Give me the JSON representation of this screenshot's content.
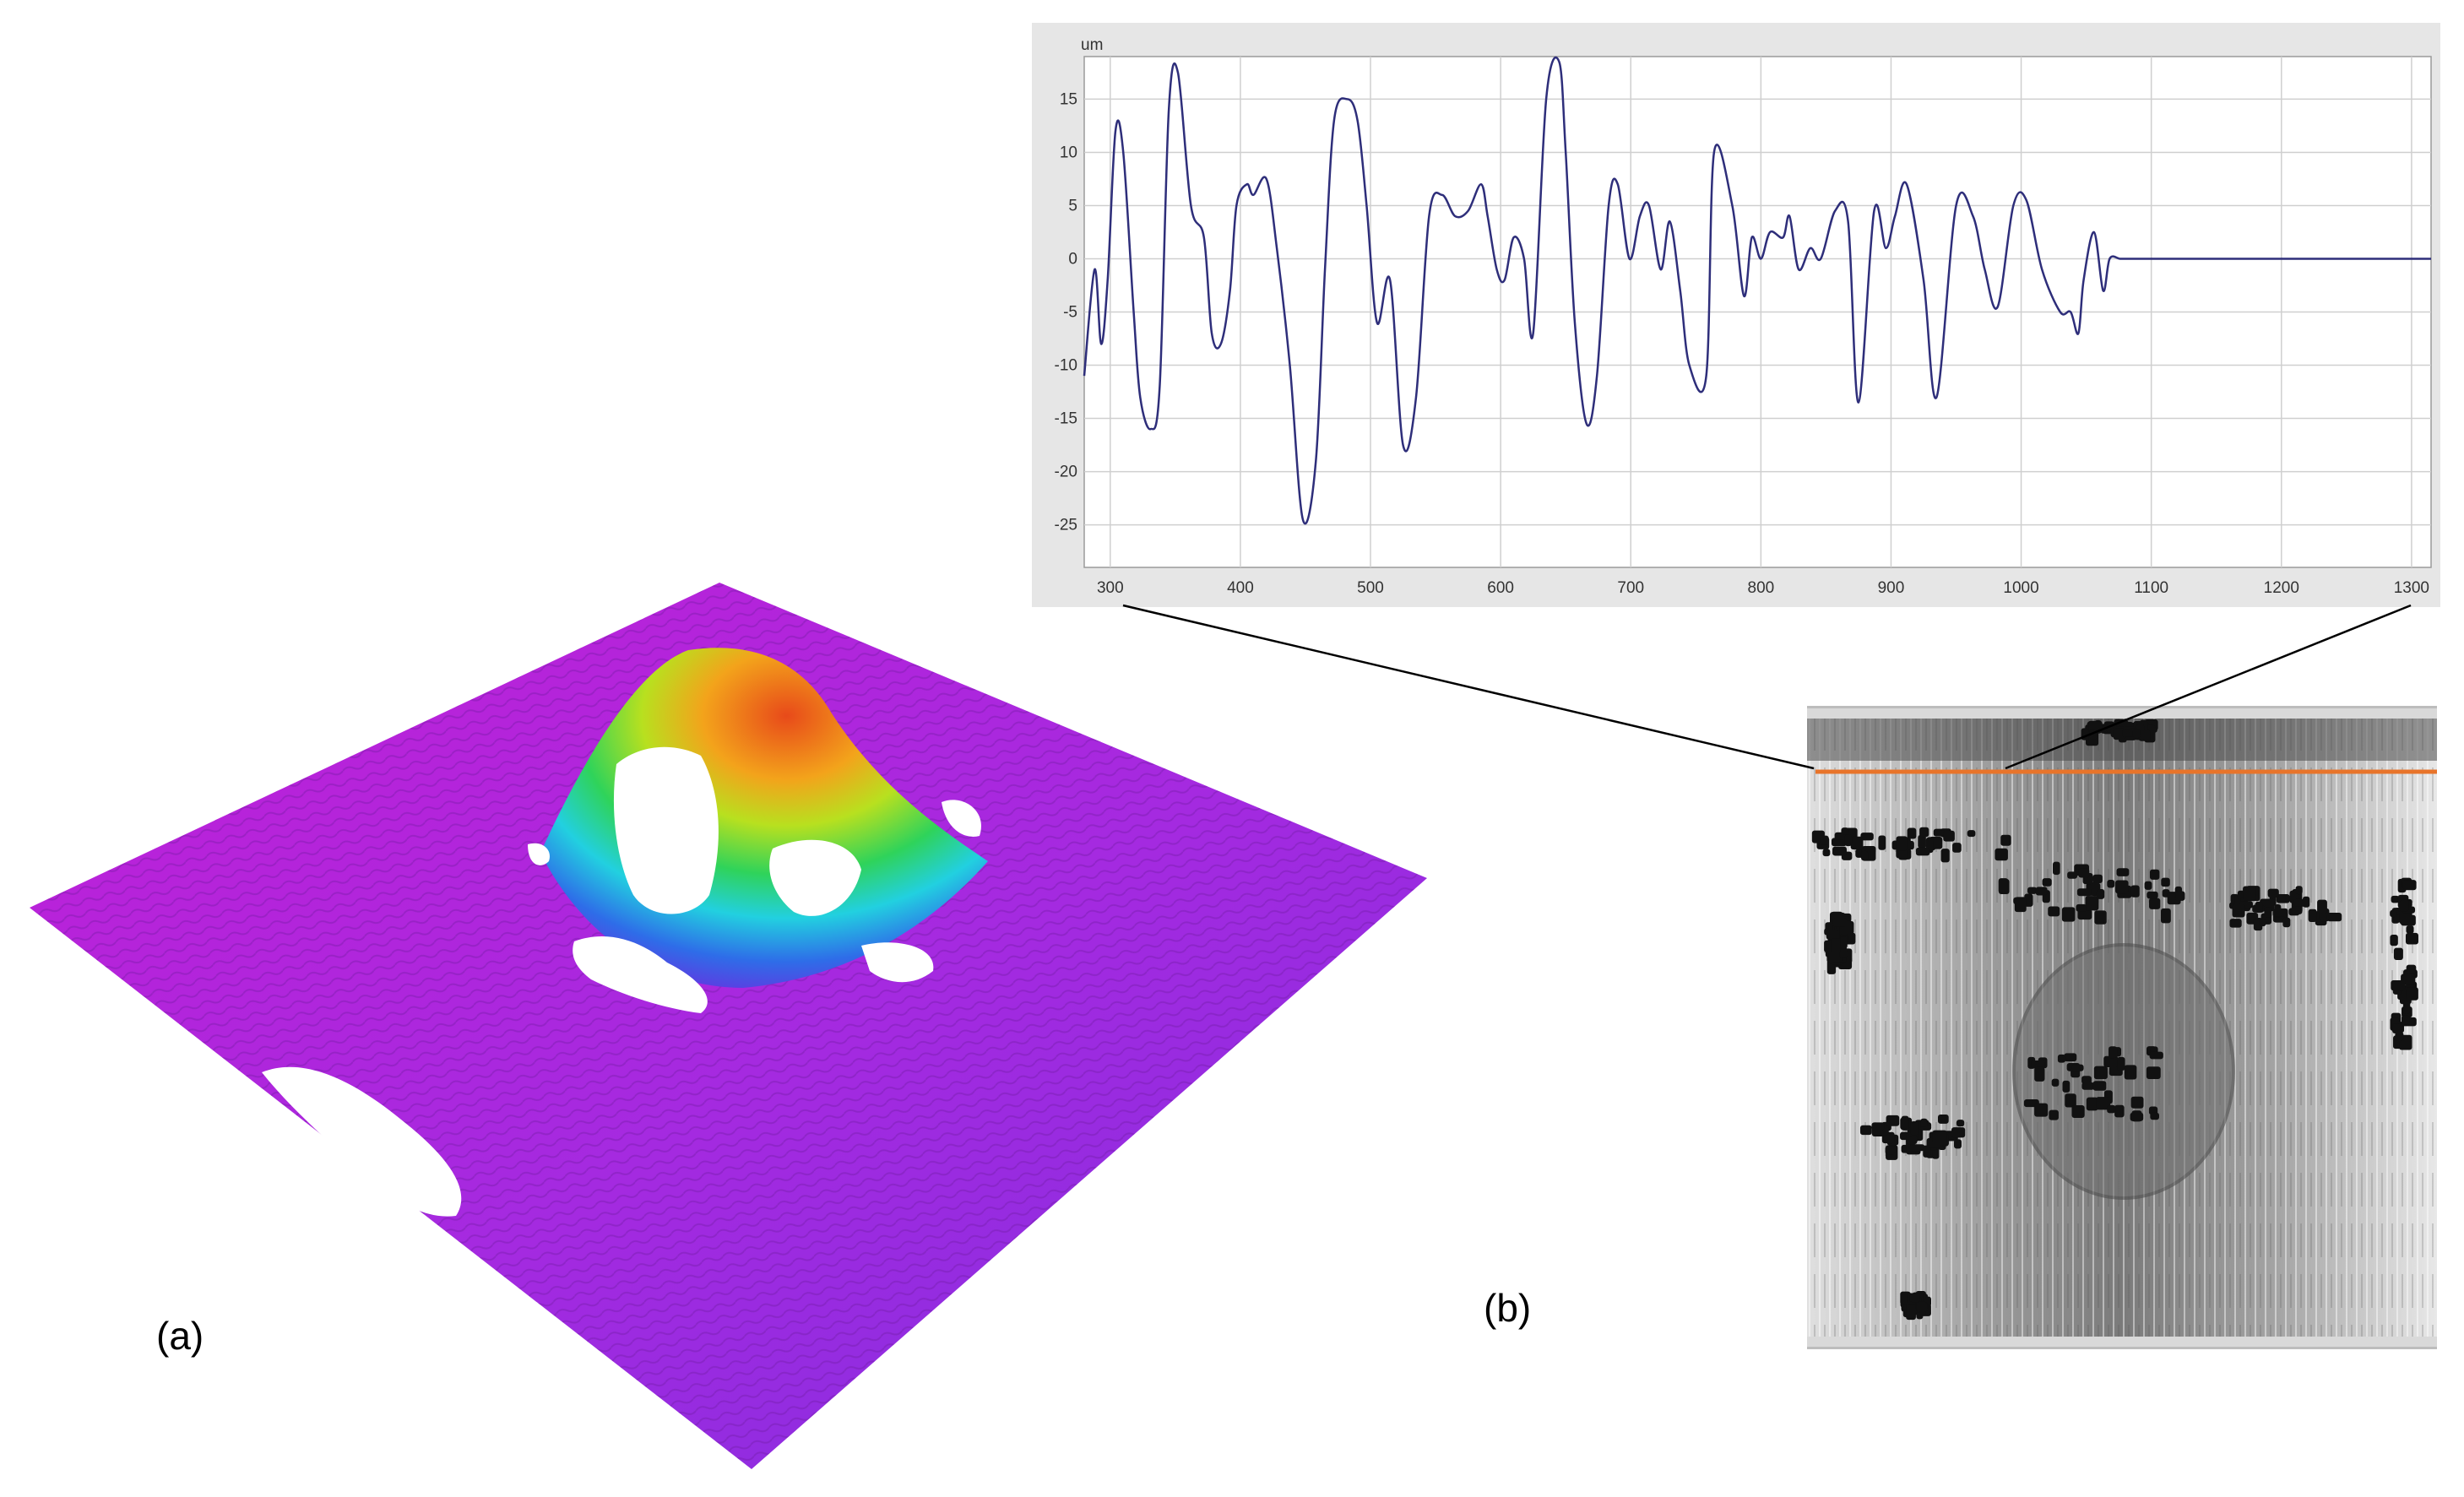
{
  "panels": {
    "a_label": "(a)",
    "b_label": "(b)"
  },
  "colors": {
    "profile_line": "#2e2e7a",
    "chart_panel_bg": "#e6e6e6",
    "plot_bg": "#ffffff",
    "grid": "#cfcfcf",
    "section_line": "#e8742a",
    "surface_low": "#c21fd6",
    "surface_mid": "#22d0e0",
    "surface_high": "#e84a1a"
  },
  "chart_data": {
    "type": "line",
    "ylabel": "um",
    "xlim": [
      280,
      1315
    ],
    "ylim": [
      -29,
      19
    ],
    "xticks": [
      300,
      400,
      500,
      600,
      700,
      800,
      900,
      1000,
      1100,
      1200,
      1300
    ],
    "yticks": [
      15,
      10,
      5,
      0,
      -5,
      -10,
      -15,
      -20,
      -25
    ],
    "grid": true,
    "series": [
      {
        "x": [
          280,
          288,
          293,
          298,
          304,
          310,
          318,
          323,
          331,
          338,
          345,
          352,
          362,
          372,
          378,
          385,
          392,
          397,
          405,
          410,
          420,
          428,
          438,
          448,
          458,
          465,
          472,
          482,
          490,
          497,
          505,
          515,
          525,
          535,
          545,
          555,
          565,
          575,
          585,
          590,
          597,
          603,
          610,
          618,
          625,
          635,
          645,
          650,
          657,
          666,
          674,
          683,
          690,
          699,
          707,
          714,
          723,
          730,
          738,
          745,
          758,
          764,
          778,
          787,
          793,
          800,
          807,
          817,
          822,
          829,
          838,
          846,
          857,
          867,
          875,
          887,
          896,
          903,
          912,
          925,
          935,
          950,
          963,
          972,
          982,
          994,
          1004,
          1016,
          1030,
          1038,
          1044,
          1048,
          1056,
          1063,
          1068,
          1076,
          1083,
          1094,
          1106,
          1116,
          1126,
          1140,
          1152,
          1164,
          1177,
          1193,
          1207,
          1222,
          1234,
          1244,
          1258,
          1272,
          1285,
          1298,
          1306,
          1315
        ],
        "y": [
          -11,
          -1,
          -8,
          -2,
          12,
          10,
          -5,
          -13,
          -16,
          -12,
          14,
          17.5,
          5,
          2,
          -7,
          -8,
          -3,
          5,
          7,
          6,
          7.5,
          1,
          -10,
          -24.5,
          -19,
          -1,
          13,
          15,
          13,
          5,
          -6,
          -2,
          -17.5,
          -13,
          4,
          6,
          4,
          4.5,
          7,
          4,
          -1,
          -2,
          2,
          0,
          -7,
          15,
          18.5,
          10,
          -6,
          -15.5,
          -11,
          5,
          7,
          0,
          4,
          5,
          -1,
          3.5,
          -3,
          -10,
          -11,
          10,
          5,
          -3.5,
          2,
          0,
          2.5,
          2,
          4,
          -1,
          1,
          0,
          4.5,
          3.5,
          -13.5,
          4.5,
          1,
          4,
          7,
          -2,
          -13,
          5,
          4,
          -1,
          -4.5,
          5,
          5.5,
          -1,
          -5,
          -5,
          -7,
          -2,
          2.5,
          -3,
          0,
          0,
          0,
          0,
          0,
          0,
          0,
          0,
          0,
          0,
          0,
          0,
          0,
          0,
          0,
          0,
          0,
          0,
          0,
          0,
          0,
          0
        ]
      }
    ]
  }
}
